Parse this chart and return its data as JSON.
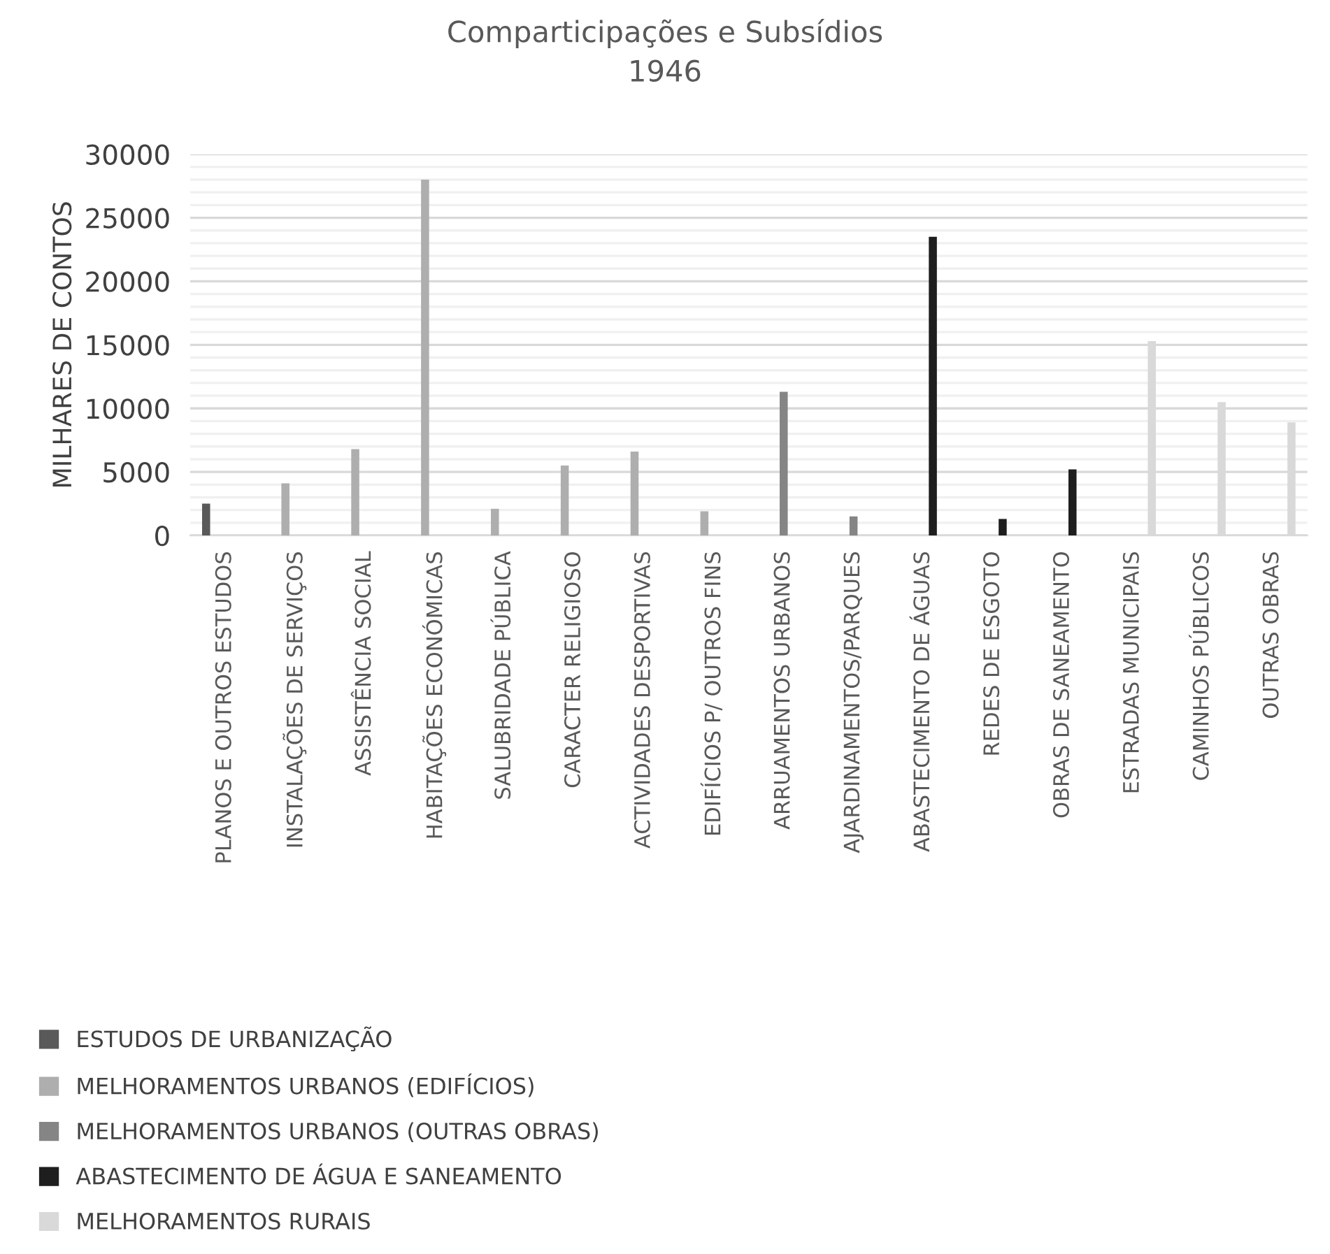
{
  "chart_data": {
    "type": "bar",
    "title": "Comparticipações e Subsídios\n1946",
    "ylabel": "MILHARES DE CONTOS",
    "categories": [
      "PLANOS E OUTROS ESTUDOS",
      "INSTALAÇÕES DE SERVIÇOS",
      "ASSISTÊNCIA SOCIAL",
      "HABITAÇÕES ECONÓMICAS",
      "SALUBRIDADE PÚBLICA",
      "CARACTER RELIGIOSO",
      "ACTIVIDADES DESPORTIVAS",
      "EDIFÍCIOS P/ OUTROS FINS",
      "ARRUAMENTOS URBANOS",
      "AJARDINAMENTOS/PARQUES",
      "ABASTECIMENTO DE ÁGUAS",
      "REDES DE ESGOTO",
      "OBRAS DE SANEAMENTO",
      "ESTRADAS MUNICIPAIS",
      "CAMINHOS PÚBLICOS",
      "OUTRAS OBRAS"
    ],
    "series": [
      {
        "name": "ESTUDOS DE URBANIZAÇÃO",
        "color": "#595959",
        "values": [
          2500,
          null,
          null,
          null,
          null,
          null,
          null,
          null,
          null,
          null,
          null,
          null,
          null,
          null,
          null,
          null
        ]
      },
      {
        "name": "MELHORAMENTOS URBANOS (EDIFÍCIOS)",
        "color": "#aeaeae",
        "values": [
          null,
          4100,
          6800,
          28000,
          2100,
          5500,
          6600,
          1900,
          null,
          null,
          null,
          null,
          null,
          null,
          null,
          null
        ]
      },
      {
        "name": "MELHORAMENTOS URBANOS (OUTRAS OBRAS)",
        "color": "#858585",
        "values": [
          null,
          null,
          null,
          null,
          null,
          null,
          null,
          null,
          11300,
          1500,
          null,
          null,
          null,
          null,
          null,
          null
        ]
      },
      {
        "name": "ABASTECIMENTO DE ÁGUA E SANEAMENTO",
        "color": "#1e1e1e",
        "values": [
          null,
          null,
          null,
          null,
          null,
          null,
          null,
          null,
          null,
          null,
          23500,
          1300,
          5200,
          null,
          null,
          null
        ]
      },
      {
        "name": "MELHORAMENTOS RURAIS",
        "color": "#d9d9d9",
        "values": [
          null,
          null,
          null,
          null,
          null,
          null,
          null,
          null,
          null,
          null,
          null,
          null,
          null,
          15300,
          10500,
          8900
        ]
      }
    ],
    "ylim": [
      0,
      30000
    ],
    "yticks": [
      0,
      {
        "value": 1000,
        "label": null
      },
      {
        "value": 2000,
        "label": null
      },
      {
        "value": 3000,
        "label": null
      },
      {
        "value": 4000,
        "label": null
      },
      5000,
      {
        "value": 6000,
        "label": null
      },
      {
        "value": 7000,
        "label": null
      },
      {
        "value": 8000,
        "label": null
      },
      {
        "value": 9000,
        "label": null
      },
      10000,
      {
        "value": 11000,
        "label": null
      },
      {
        "value": 12000,
        "label": null
      },
      {
        "value": 13000,
        "label": null
      },
      {
        "value": 14000,
        "label": null
      },
      15000,
      {
        "value": 16000,
        "label": null
      },
      {
        "value": 17000,
        "label": null
      },
      {
        "value": 18000,
        "label": null
      },
      {
        "value": 19000,
        "label": null
      },
      20000,
      {
        "value": 21000,
        "label": null
      },
      {
        "value": 22000,
        "label": null
      },
      {
        "value": 23000,
        "label": null
      },
      {
        "value": 24000,
        "label": null
      },
      25000,
      {
        "value": 26000,
        "label": null
      },
      {
        "value": 27000,
        "label": null
      },
      {
        "value": 28000,
        "label": null
      },
      {
        "value": 29000,
        "label": null
      },
      30000
    ],
    "grid": "y",
    "legend": "bottom"
  }
}
